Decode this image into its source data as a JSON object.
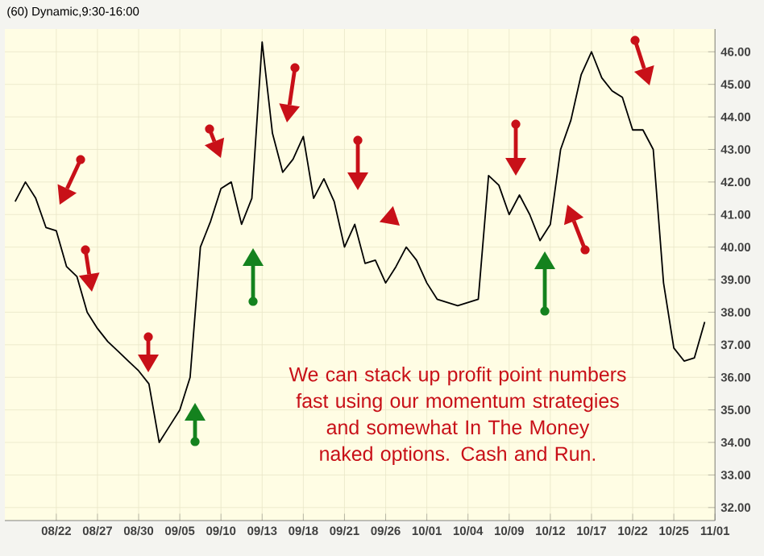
{
  "chart_data": {
    "type": "line",
    "title": "(60) Dynamic,9:30-16:00",
    "annotations": [
      "We can stack up profit point numbers fast using our momentum strategies and somewhat In The Money naked options.  Cash and Run."
    ],
    "categories": [
      null,
      null,
      null,
      null,
      "08/22",
      null,
      null,
      null,
      "08/27",
      null,
      null,
      null,
      "08/30",
      null,
      null,
      null,
      "09/05",
      null,
      null,
      null,
      "09/10",
      null,
      null,
      null,
      "09/13",
      null,
      null,
      null,
      "09/18",
      null,
      null,
      null,
      "09/21",
      null,
      null,
      null,
      "09/26",
      null,
      null,
      null,
      "10/01",
      null,
      null,
      null,
      "10/04",
      null,
      null,
      null,
      "10/09",
      null,
      null,
      null,
      "10/12",
      null,
      null,
      null,
      "10/17",
      null,
      null,
      null,
      "10/22",
      null,
      null,
      null,
      "10/25",
      null,
      null,
      null,
      "11/01"
    ],
    "series": [
      {
        "color": "#000000",
        "values": [
          41.4,
          42.0,
          41.5,
          40.6,
          40.5,
          39.4,
          39.1,
          38.0,
          37.5,
          37.1,
          36.8,
          36.5,
          36.2,
          35.8,
          34.0,
          34.5,
          35.0,
          36.0,
          40.0,
          40.8,
          41.8,
          42.0,
          40.7,
          41.5,
          46.3,
          43.5,
          42.3,
          42.7,
          43.4,
          41.5,
          42.1,
          41.4,
          40.0,
          40.7,
          39.5,
          39.6,
          38.9,
          39.4,
          40.0,
          39.6,
          38.9,
          38.4,
          38.3,
          38.2,
          38.3,
          38.4,
          42.2,
          41.9,
          41.0,
          41.6,
          41.0,
          40.2,
          40.7,
          43.0,
          43.9,
          45.3,
          46.0,
          45.2,
          44.8,
          44.6,
          43.6,
          43.6,
          43.0,
          38.9,
          36.9,
          36.5,
          36.6,
          37.7,
          null
        ]
      }
    ],
    "ylim": [
      31.6,
      46.7
    ],
    "yticks": [
      {
        "value": 32,
        "label": "32.00"
      },
      {
        "value": 33,
        "label": "33.00"
      },
      {
        "value": 34,
        "label": "34.00"
      },
      {
        "value": 35,
        "label": "35.00"
      },
      {
        "value": 36,
        "label": "36.00"
      },
      {
        "value": 37,
        "label": "37.00"
      },
      {
        "value": 38,
        "label": "38.00"
      },
      {
        "value": 39,
        "label": "39.00"
      },
      {
        "value": 40,
        "label": "40.00"
      },
      {
        "value": 41,
        "label": "41.00"
      },
      {
        "value": 42,
        "label": "42.00"
      },
      {
        "value": 43,
        "label": "43.00"
      },
      {
        "value": 44,
        "label": "44.00"
      },
      {
        "value": 45,
        "label": "45.00"
      },
      {
        "value": 46,
        "label": "46.00"
      }
    ],
    "grid": true,
    "marker": "none"
  }
}
